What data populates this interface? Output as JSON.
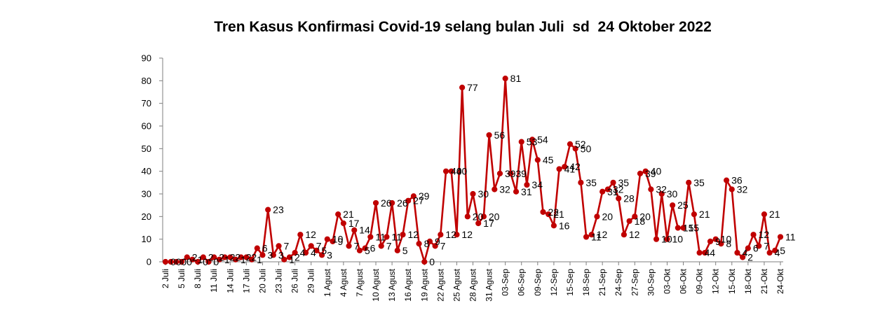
{
  "chart_data": {
    "type": "line",
    "title": "Tren Kasus Konfirmasi Covid-19 selang bulan Juli  sd  24 Oktober 2022",
    "xlabel": "",
    "ylabel": "",
    "x_tick_labels": [
      "2 Juli",
      "5 Juli",
      "8 Juli",
      "11 Juli",
      "14 Juli",
      "17 Juli",
      "20 Juli",
      "23 Juli",
      "26 Juli",
      "29 Juli",
      "1 Agust",
      "4 Agust",
      "7 Agust",
      "10 Agust",
      "13 Agust",
      "16 Agust",
      "19 Agust",
      "22 Agust",
      "25 Agust",
      "28 Agust",
      "31 Agust",
      "03-Sep",
      "06-Sep",
      "09-Sep",
      "12-Sep",
      "15-Sep",
      "18-Sep",
      "21-Sep",
      "24-Sep",
      "27-Sep",
      "30-Sep",
      "03-Okt",
      "06-Okt",
      "09-Okt",
      "12-Okt",
      "15-Okt",
      "18-Okt",
      "21-Okt",
      "24-Okt"
    ],
    "series": [
      {
        "values": [
          0,
          0,
          0,
          0,
          2,
          1,
          0,
          2,
          0,
          2,
          1,
          2,
          2,
          1,
          2,
          2,
          1,
          6,
          3,
          23,
          3,
          7,
          1,
          2,
          4,
          12,
          4,
          7,
          5,
          3,
          10,
          9,
          21,
          17,
          7,
          14,
          5,
          6,
          11,
          26,
          7,
          11,
          26,
          5,
          12,
          27,
          29,
          8,
          0,
          9,
          7,
          12,
          40,
          40,
          12,
          77,
          20,
          30,
          17,
          20,
          56,
          32,
          39,
          81,
          39,
          31,
          53,
          34,
          54,
          45,
          22,
          21,
          16,
          41,
          42,
          52,
          50,
          35,
          11,
          12,
          20,
          31,
          32,
          35,
          28,
          12,
          18,
          20,
          39,
          40,
          32,
          10,
          30,
          10,
          25,
          15,
          15,
          35,
          21,
          4,
          4,
          9,
          10,
          8,
          36,
          32,
          4,
          2,
          6,
          12,
          7,
          21,
          4,
          5,
          11
        ],
        "color": "#C00000",
        "marker": "circle",
        "show_data_labels": true
      }
    ],
    "ylim": [
      0,
      90
    ],
    "yticks": [
      0,
      10,
      20,
      30,
      40,
      50,
      60,
      70,
      80,
      90
    ],
    "grid": false,
    "legend": "none",
    "axis_color": "#7F7F7F",
    "text_color": "#000000"
  }
}
